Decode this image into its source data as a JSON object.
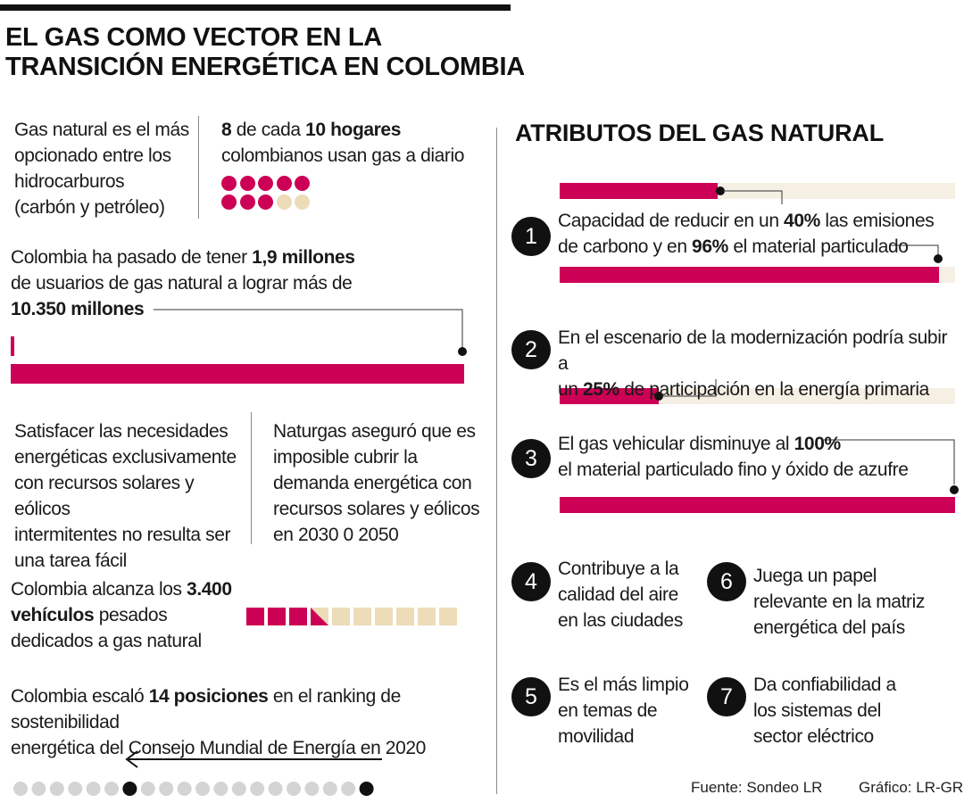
{
  "title_line1": "EL GAS COMO VECTOR EN LA",
  "title_line2": "TRANSICIÓN ENERGÉTICA EN COLOMBIA",
  "block1": {
    "text": [
      "Gas natural es el más",
      "opcionado entre los",
      "hidrocarburos",
      "(carbón y petróleo)"
    ]
  },
  "block2": {
    "num1": "8",
    "mid": " de cada ",
    "num2": "10 hogares",
    "line2": "colombianos usan gas a diario",
    "dots_filled": 8,
    "dots_total": 10
  },
  "block3": {
    "line1_pre": "Colombia ha pasado de tener ",
    "line1_bold": "1,9 millones",
    "line2": "de usuarios de gas natural a lograr más de",
    "line3_bold": "10.350 millones",
    "from_value": 1.9,
    "to_value": 10350
  },
  "block4": {
    "text": [
      "Satisfacer las necesidades",
      "energéticas exclusivamente",
      "con recursos solares y eólicos",
      "intermitentes no resulta ser",
      "una tarea fácil"
    ]
  },
  "block5": {
    "text": [
      "Naturgas aseguró que es",
      "imposible cubrir la",
      "demanda energética con",
      "recursos solares y eólicos",
      "en 2030 0 2050"
    ]
  },
  "block6": {
    "pre": "Colombia alcanza los ",
    "bold1": "3.400",
    "bold2": "vehículos",
    "post": " pesados",
    "line3": "dedicados a gas natural",
    "squares_filled": 3.5,
    "squares_total": 10
  },
  "block7": {
    "pre": "Colombia escaló ",
    "bold": "14 posiciones",
    "post": " en el ranking de sostenibilidad",
    "line2": "energética del Consejo Mundial de Energía en 2020",
    "positions": 14
  },
  "right": {
    "heading": "ATRIBUTOS DEL GAS NATURAL",
    "items": [
      {
        "num": "1",
        "line1_pre": "Capacidad de reducir en un ",
        "line1_bold": "40%",
        "line1_post": " las emisiones",
        "line2_pre": "de carbono y en ",
        "line2_bold": "96%",
        "line2_post": " el material particulado",
        "bar_a": 0.4,
        "bar_b": 0.96
      },
      {
        "num": "2",
        "line1": "En el escenario de la modernización podría subir a",
        "line2_pre": "un ",
        "line2_bold": "25%",
        "line2_post": " de participación en la energía primaria",
        "bar": 0.25
      },
      {
        "num": "3",
        "line1_pre": "El gas vehicular disminuye al ",
        "line1_bold": "100%",
        "line2": "el  material particulado fino y óxido de azufre",
        "bar": 1.0
      },
      {
        "num": "4",
        "text": [
          "Contribuye a la",
          "calidad del aire",
          "en las ciudades"
        ]
      },
      {
        "num": "5",
        "text": [
          "Es el más limpio",
          "en temas de",
          "movilidad"
        ]
      },
      {
        "num": "6",
        "text": [
          "Juega un papel",
          "relevante en la matriz",
          "energética del país"
        ]
      },
      {
        "num": "7",
        "text": [
          "Da confiabilidad a",
          "los sistemas del",
          "sector eléctrico"
        ]
      }
    ]
  },
  "footer": {
    "source": "Fuente: Sondeo LR",
    "credit": "Gráfico: LR-GR"
  },
  "colors": {
    "accent": "#cc0055",
    "track": "#f6efe4",
    "beige": "#ecdcb8",
    "grey": "#d4d4d4"
  }
}
